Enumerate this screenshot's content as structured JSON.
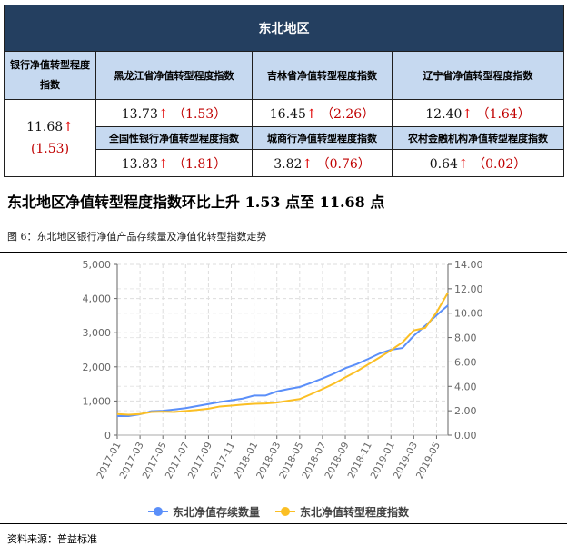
{
  "table": {
    "header": "东北地区",
    "overall": {
      "label": "银行净值转型程度指数",
      "value": "11.68",
      "arrow": "↑",
      "change": "(1.53)"
    },
    "cells": [
      {
        "label": "黑龙江省净值转型程度指数",
        "value": "13.73",
        "arrow": "↑",
        "change": "（1.53）"
      },
      {
        "label": "吉林省净值转型程度指数",
        "value": "16.45",
        "arrow": "↑",
        "change": "（2.26）"
      },
      {
        "label": "辽宁省净值转型程度指数",
        "value": "12.40",
        "arrow": "↑",
        "change": "（1.64）"
      },
      {
        "label": "全国性银行净值转型程度指数",
        "value": "13.83",
        "arrow": "↑",
        "change": "（1.81）"
      },
      {
        "label": "城商行净值转型程度指数",
        "value": "3.82",
        "arrow": "↑",
        "change": "（0.76）"
      },
      {
        "label": "农村金融机构净值转型程度指数",
        "value": "0.64",
        "arrow": "↑",
        "change": "（0.02）"
      }
    ]
  },
  "heading": "东北地区净值转型程度指数环比上升 1.53 点至 11.68 点",
  "figure_caption": "图 6：东北地区银行净值产品存续量及净值化转型指数走势",
  "source": "资料来源：普益标准",
  "chart_data": {
    "type": "line",
    "x": [
      "2017-01",
      "2017-02",
      "2017-03",
      "2017-04",
      "2017-05",
      "2017-06",
      "2017-07",
      "2017-08",
      "2017-09",
      "2017-10",
      "2017-11",
      "2017-12",
      "2018-01",
      "2018-02",
      "2018-03",
      "2018-04",
      "2018-05",
      "2018-06",
      "2018-07",
      "2018-08",
      "2018-09",
      "2018-10",
      "2018-11",
      "2018-12",
      "2019-01",
      "2019-02",
      "2019-03",
      "2019-04",
      "2019-05",
      "2019-06"
    ],
    "xticks": [
      "2017-01",
      "2017-03",
      "2017-05",
      "2017-07",
      "2017-09",
      "2017-11",
      "2018-01",
      "2018-03",
      "2018-05",
      "2018-07",
      "2018-09",
      "2018-11",
      "2019-01",
      "2019-03",
      "2019-05"
    ],
    "yticks_left": [
      "0",
      "1,000",
      "2,000",
      "3,000",
      "4,000",
      "5,000"
    ],
    "yticks_right": [
      "0.00",
      "2.00",
      "4.00",
      "6.00",
      "8.00",
      "10.00",
      "12.00",
      "14.00"
    ],
    "ylim_left": [
      0,
      5000
    ],
    "ylim_right": [
      0,
      14
    ],
    "grid": true,
    "legend": "bottom",
    "series": [
      {
        "name": "东北净值存续数量",
        "axis": "left",
        "color": "#5b8ff9",
        "values": [
          560,
          560,
          610,
          700,
          715,
          750,
          790,
          850,
          910,
          970,
          1020,
          1070,
          1160,
          1160,
          1280,
          1350,
          1410,
          1530,
          1660,
          1800,
          1960,
          2080,
          2230,
          2390,
          2500,
          2550,
          2910,
          3200,
          3510,
          3800
        ]
      },
      {
        "name": "东北净值转型程度指数",
        "axis": "right",
        "color": "#fbbf24",
        "values": [
          1.73,
          1.68,
          1.73,
          1.9,
          1.93,
          1.9,
          1.98,
          2.07,
          2.17,
          2.35,
          2.42,
          2.5,
          2.57,
          2.6,
          2.67,
          2.82,
          2.96,
          3.36,
          3.78,
          4.22,
          4.74,
          5.23,
          5.8,
          6.37,
          6.96,
          7.6,
          8.59,
          8.79,
          10.07,
          11.68
        ]
      }
    ]
  }
}
